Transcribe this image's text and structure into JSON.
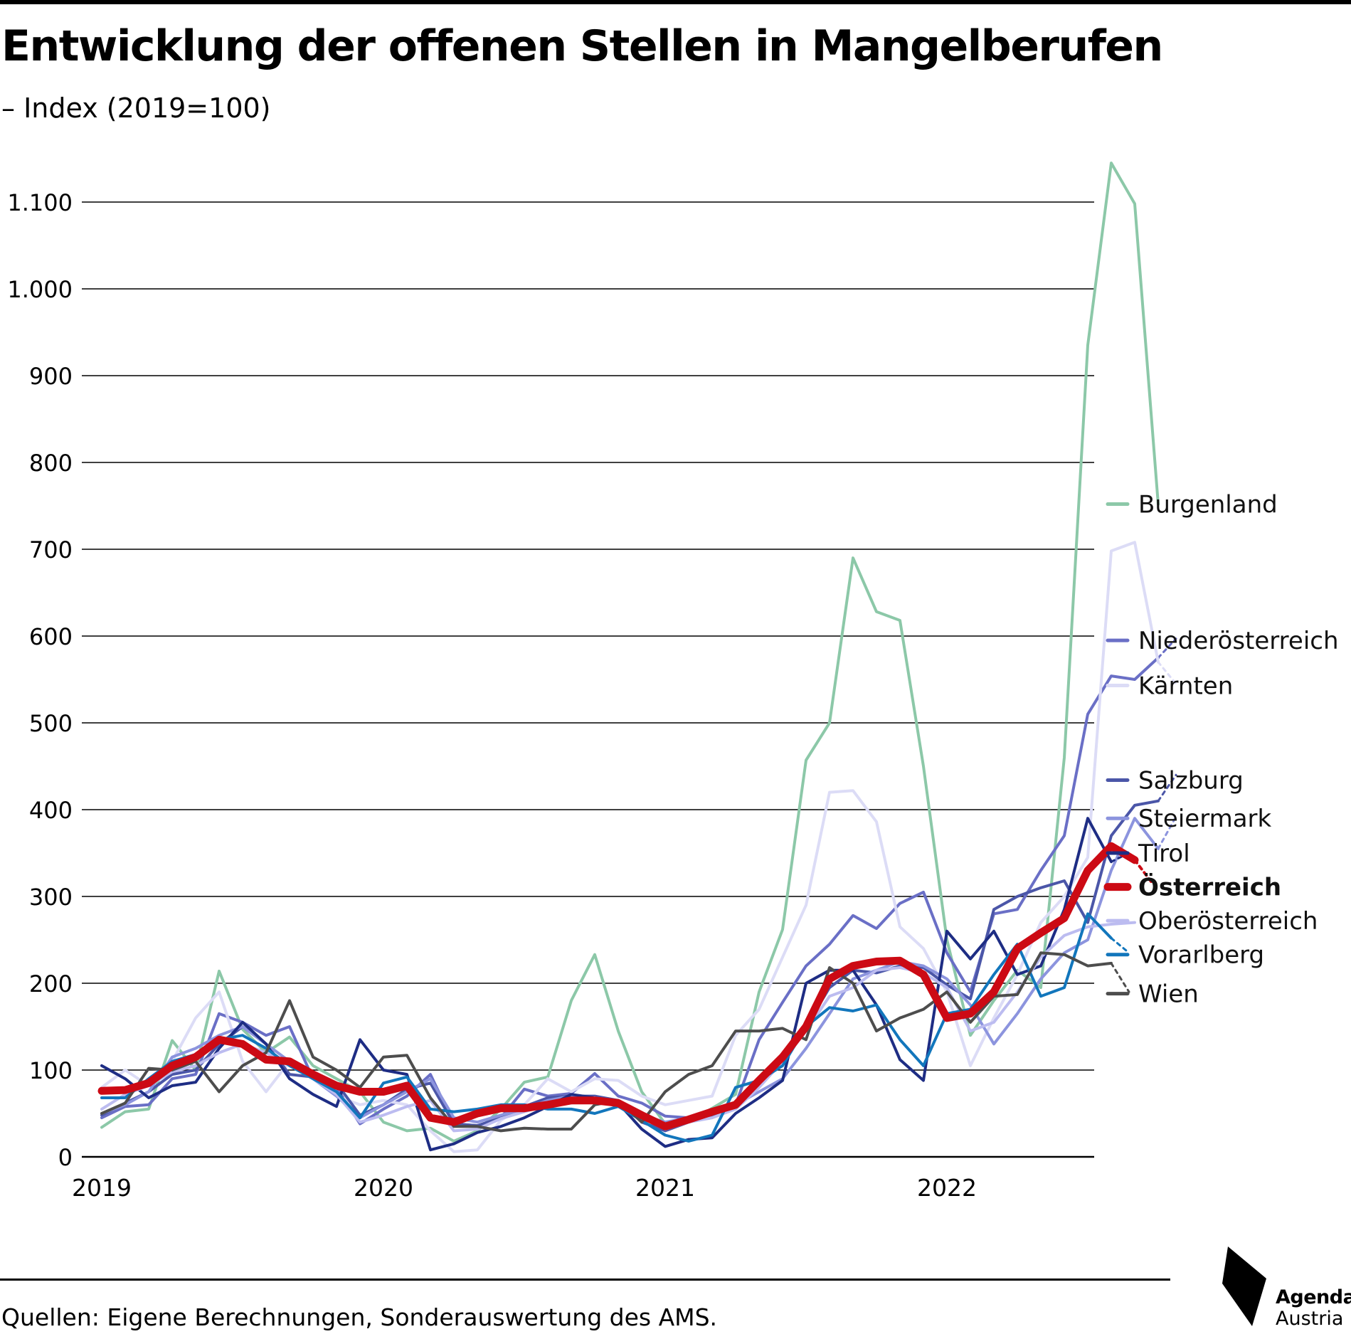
{
  "title": "Entwicklung der offenen Stellen in Mangelberufen",
  "subtitle": "– Index (2019=100)",
  "source": "Quellen: Eigene Berechnungen, Sonderauswertung des AMS.",
  "logo": {
    "line1": "Agenda",
    "line2": "Austria"
  },
  "chart_data": {
    "type": "line",
    "title": "Entwicklung der offenen Stellen in Mangelberufen",
    "subtitle": "– Index (2019=100)",
    "xlabel": "",
    "ylabel": "",
    "x_start": "2019-01",
    "x_step": "month",
    "x_ticks": [
      "2019",
      "2020",
      "2021",
      "2022"
    ],
    "ylim": [
      0,
      1100
    ],
    "y_ticks": [
      0,
      100,
      200,
      300,
      400,
      500,
      600,
      700,
      800,
      900,
      1000,
      1100
    ],
    "y_tick_labels": [
      "0",
      "100",
      "200",
      "300",
      "400",
      "500",
      "600",
      "700",
      "800",
      "900",
      "1.000",
      "1.100"
    ],
    "grid": "horizontal",
    "legend": "right",
    "projection_note": "dotted extension after last month",
    "series": [
      {
        "name": "Burgenland",
        "color": "#8cc8a8",
        "width": 4,
        "values": [
          34,
          52,
          55,
          134,
          100,
          214,
          147,
          120,
          138,
          105,
          90,
          75,
          40,
          30,
          33,
          18,
          30,
          55,
          86,
          92,
          180,
          233,
          145,
          75,
          38,
          40,
          56,
          72,
          190,
          262,
          457,
          500,
          690,
          628,
          618,
          450,
          250,
          140,
          180,
          215,
          195,
          460,
          935,
          1145,
          1098,
          752
        ],
        "projection": []
      },
      {
        "name": "Niederösterreich",
        "color": "#6a6fc6",
        "width": 4,
        "values": [
          45,
          58,
          60,
          90,
          95,
          165,
          155,
          140,
          150,
          90,
          80,
          38,
          55,
          70,
          95,
          38,
          36,
          45,
          78,
          70,
          73,
          96,
          70,
          62,
          47,
          45,
          50,
          60,
          135,
          178,
          220,
          245,
          278,
          263,
          292,
          305,
          235,
          190,
          280,
          285,
          330,
          370,
          510,
          554,
          550,
          575
        ],
        "projection": [
          597
        ]
      },
      {
        "name": "Kärnten",
        "color": "#dcdcf6",
        "width": 4,
        "values": [
          80,
          100,
          82,
          110,
          160,
          190,
          110,
          75,
          110,
          90,
          70,
          60,
          65,
          60,
          30,
          6,
          8,
          42,
          60,
          90,
          75,
          90,
          88,
          70,
          60,
          65,
          70,
          140,
          170,
          230,
          290,
          420,
          422,
          386,
          265,
          240,
          190,
          105,
          160,
          210,
          270,
          300,
          345,
          698,
          708,
          570
        ],
        "projection": [
          545
        ]
      },
      {
        "name": "Salzburg",
        "color": "#4b56a8",
        "width": 4,
        "values": [
          48,
          62,
          75,
          95,
          100,
          130,
          150,
          130,
          95,
          92,
          85,
          48,
          60,
          78,
          85,
          38,
          36,
          45,
          58,
          68,
          70,
          70,
          65,
          40,
          30,
          40,
          48,
          60,
          85,
          110,
          150,
          195,
          215,
          212,
          220,
          218,
          198,
          182,
          285,
          300,
          310,
          318,
          270,
          370,
          405,
          410
        ],
        "projection": [
          440
        ]
      },
      {
        "name": "Steiermark",
        "color": "#8c94de",
        "width": 4,
        "values": [
          50,
          60,
          75,
          115,
          125,
          140,
          150,
          130,
          110,
          90,
          70,
          45,
          60,
          75,
          90,
          45,
          40,
          48,
          55,
          65,
          70,
          65,
          58,
          48,
          40,
          45,
          50,
          60,
          75,
          90,
          125,
          165,
          205,
          215,
          225,
          220,
          205,
          175,
          130,
          165,
          205,
          235,
          250,
          330,
          390,
          355
        ],
        "projection": [
          392
        ]
      },
      {
        "name": "Tirol",
        "color": "#1e2d84",
        "width": 4,
        "values": [
          105,
          90,
          68,
          82,
          86,
          125,
          155,
          130,
          90,
          72,
          58,
          135,
          100,
          95,
          8,
          15,
          28,
          35,
          45,
          58,
          72,
          68,
          62,
          32,
          12,
          20,
          22,
          50,
          68,
          88,
          200,
          215,
          215,
          175,
          112,
          88,
          260,
          228,
          260,
          210,
          220,
          285,
          390,
          340
        ],
        "projection": [
          350
        ]
      },
      {
        "name": "Österreich",
        "color": "#cc0a14",
        "width": 11,
        "values": [
          76,
          77,
          85,
          105,
          115,
          135,
          130,
          112,
          110,
          95,
          82,
          75,
          75,
          82,
          45,
          40,
          50,
          56,
          56,
          60,
          65,
          65,
          62,
          48,
          35,
          43,
          52,
          60,
          88,
          115,
          150,
          205,
          220,
          225,
          226,
          210,
          160,
          165,
          190,
          240,
          258,
          275,
          330,
          358,
          342
        ],
        "projection": [
          315
        ]
      },
      {
        "name": "Oberösterreich",
        "color": "#bcbcf0",
        "width": 4,
        "values": [
          55,
          72,
          82,
          98,
          105,
          120,
          130,
          120,
          105,
          90,
          72,
          40,
          48,
          58,
          65,
          30,
          32,
          44,
          52,
          60,
          62,
          68,
          60,
          45,
          32,
          40,
          45,
          55,
          80,
          110,
          145,
          185,
          195,
          215,
          218,
          212,
          195,
          145,
          155,
          190,
          230,
          255,
          265,
          268,
          270
        ],
        "projection": []
      },
      {
        "name": "Vorarlberg",
        "color": "#1276bc",
        "width": 4,
        "values": [
          68,
          68,
          90,
          110,
          118,
          135,
          140,
          125,
          105,
          90,
          75,
          45,
          85,
          92,
          55,
          52,
          55,
          60,
          60,
          55,
          55,
          50,
          58,
          42,
          25,
          18,
          25,
          80,
          88,
          105,
          150,
          172,
          168,
          175,
          135,
          105,
          165,
          170,
          210,
          245,
          185,
          195,
          280,
          252
        ],
        "projection": [
          235
        ]
      },
      {
        "name": "Wien",
        "color": "#4d4d4d",
        "width": 4,
        "values": [
          50,
          62,
          102,
          100,
          110,
          75,
          105,
          120,
          180,
          115,
          100,
          80,
          115,
          117,
          68,
          35,
          35,
          30,
          33,
          32,
          32,
          60,
          65,
          40,
          75,
          95,
          105,
          145,
          145,
          148,
          135,
          218,
          200,
          145,
          160,
          170,
          190,
          155,
          185,
          187,
          235,
          233,
          220,
          223
        ],
        "projection": [
          190
        ]
      }
    ],
    "legend_labels": [
      {
        "series": "Burgenland",
        "value": 752
      },
      {
        "series": "Niederösterreich",
        "value": 595
      },
      {
        "series": "Kärnten",
        "value": 543
      },
      {
        "series": "Salzburg",
        "value": 434
      },
      {
        "series": "Steiermark",
        "value": 390
      },
      {
        "series": "Tirol",
        "value": 350
      },
      {
        "series": "Österreich",
        "value": 311
      },
      {
        "series": "Oberösterreich",
        "value": 272
      },
      {
        "series": "Vorarlberg",
        "value": 233
      },
      {
        "series": "Wien",
        "value": 188
      }
    ]
  }
}
